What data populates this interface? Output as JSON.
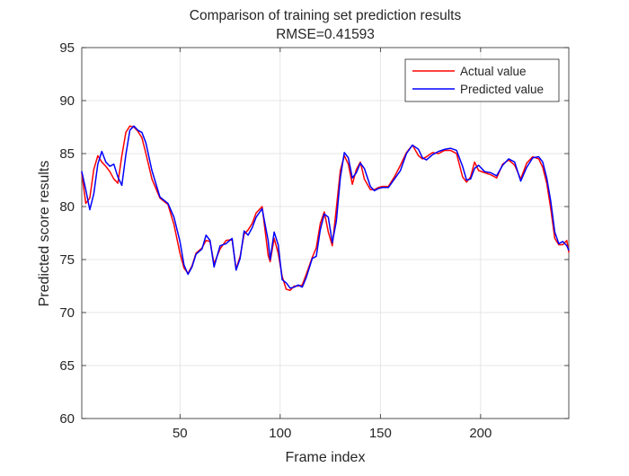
{
  "chart_data": {
    "type": "line",
    "title": "Comparison of training set prediction results",
    "subtitle": "RMSE=0.41593",
    "xlabel": "Frame index",
    "ylabel": "Predicted score results",
    "xlim": [
      1,
      244
    ],
    "ylim": [
      60,
      95
    ],
    "xticks": [
      50,
      100,
      150,
      200
    ],
    "yticks": [
      60,
      65,
      70,
      75,
      80,
      85,
      90,
      95
    ],
    "grid": true,
    "legend_position": "top-right",
    "series": [
      {
        "name": "Actual value",
        "color": "#ff0000",
        "x": [
          1,
          3,
          5,
          7,
          9,
          11,
          13,
          15,
          17,
          19,
          21,
          23,
          25,
          27,
          29,
          31,
          33,
          36,
          40,
          44,
          47,
          50,
          52,
          54,
          56,
          58,
          61,
          63,
          65,
          67,
          70,
          73,
          76,
          78,
          80,
          82,
          84,
          86,
          88,
          91,
          94,
          95,
          97,
          99,
          101,
          103,
          105,
          107,
          109,
          111,
          113,
          116,
          118,
          120,
          122,
          124,
          126,
          128,
          130,
          132,
          134,
          136,
          138,
          140,
          142,
          145,
          147,
          149,
          151,
          154,
          157,
          160,
          163,
          166,
          169,
          171,
          173,
          176,
          179,
          182,
          185,
          188,
          191,
          193,
          195,
          197,
          199,
          202,
          205,
          208,
          211,
          214,
          217,
          220,
          223,
          226,
          229,
          231,
          233,
          235,
          237,
          239,
          241,
          243,
          244
        ],
        "values": [
          83.2,
          80.3,
          80.8,
          83.5,
          84.8,
          84.2,
          83.8,
          83.3,
          82.6,
          82.2,
          84.8,
          87.0,
          87.6,
          87.5,
          87.1,
          86.5,
          85.0,
          82.6,
          80.8,
          80.2,
          78.3,
          75.6,
          74.2,
          73.7,
          74.4,
          75.6,
          76.1,
          76.8,
          76.7,
          74.6,
          76.0,
          76.8,
          76.9,
          74.1,
          75.3,
          77.4,
          77.8,
          78.4,
          79.4,
          80.0,
          75.4,
          74.8,
          77.0,
          75.6,
          73.4,
          72.2,
          72.1,
          72.5,
          72.5,
          72.6,
          73.6,
          75.2,
          76.1,
          78.4,
          79.5,
          77.6,
          76.3,
          79.8,
          83.4,
          84.8,
          84.0,
          82.1,
          83.5,
          84.2,
          82.6,
          81.6,
          81.6,
          81.8,
          81.9,
          81.9,
          82.8,
          83.9,
          85.1,
          85.8,
          84.8,
          84.5,
          84.7,
          85.1,
          85.0,
          85.3,
          85.3,
          85.0,
          82.8,
          82.3,
          82.8,
          84.2,
          83.4,
          83.2,
          83.0,
          82.7,
          84.0,
          84.4,
          83.9,
          82.6,
          84.1,
          84.7,
          84.5,
          83.7,
          82.2,
          79.8,
          77.0,
          76.4,
          76.4,
          76.8,
          75.7
        ]
      },
      {
        "name": "Predicted value",
        "color": "#0000ff",
        "x": [
          1,
          3,
          5,
          7,
          9,
          11,
          13,
          15,
          17,
          19,
          21,
          23,
          25,
          27,
          29,
          31,
          33,
          36,
          40,
          44,
          47,
          50,
          52,
          54,
          56,
          58,
          61,
          63,
          65,
          67,
          70,
          73,
          76,
          78,
          80,
          82,
          84,
          86,
          88,
          91,
          94,
          95,
          97,
          99,
          101,
          103,
          105,
          107,
          109,
          111,
          113,
          116,
          118,
          120,
          122,
          124,
          126,
          128,
          130,
          132,
          134,
          136,
          138,
          140,
          142,
          145,
          147,
          149,
          151,
          154,
          157,
          160,
          163,
          166,
          169,
          171,
          173,
          176,
          179,
          182,
          185,
          188,
          191,
          193,
          195,
          197,
          199,
          202,
          205,
          208,
          211,
          214,
          217,
          220,
          223,
          226,
          229,
          231,
          233,
          235,
          237,
          239,
          241,
          243,
          244
        ],
        "values": [
          83.3,
          81.6,
          79.7,
          81.2,
          84.0,
          85.2,
          84.2,
          83.8,
          84.0,
          82.8,
          82.0,
          84.9,
          87.2,
          87.6,
          87.2,
          87.0,
          86.0,
          83.4,
          80.9,
          80.3,
          79.0,
          76.7,
          74.5,
          73.6,
          74.3,
          75.5,
          76.0,
          77.3,
          76.8,
          74.3,
          76.3,
          76.5,
          77.0,
          74.0,
          75.1,
          77.7,
          77.3,
          78.0,
          79.0,
          79.8,
          76.8,
          75.0,
          77.6,
          76.4,
          73.1,
          72.8,
          72.3,
          72.4,
          72.6,
          72.4,
          73.3,
          75.1,
          75.3,
          77.8,
          79.3,
          79.0,
          76.6,
          78.6,
          82.7,
          85.1,
          84.6,
          82.7,
          83.2,
          84.1,
          83.6,
          81.9,
          81.5,
          81.7,
          81.8,
          81.8,
          82.6,
          83.4,
          85.0,
          85.8,
          85.4,
          84.6,
          84.4,
          84.9,
          85.2,
          85.4,
          85.5,
          85.3,
          83.8,
          82.5,
          82.6,
          83.6,
          83.9,
          83.3,
          83.2,
          82.9,
          83.9,
          84.5,
          84.2,
          82.4,
          83.7,
          84.6,
          84.7,
          84.2,
          82.7,
          80.5,
          77.6,
          76.5,
          76.7,
          76.3,
          75.9
        ]
      }
    ]
  }
}
